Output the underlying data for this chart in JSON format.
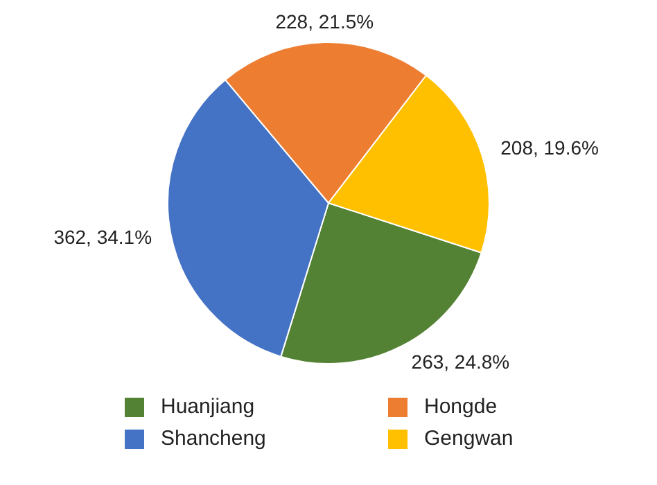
{
  "chart_data": {
    "type": "pie",
    "categories": [
      "Huanjiang",
      "Shancheng",
      "Hongde",
      "Gengwan"
    ],
    "values": [
      263,
      362,
      228,
      208
    ],
    "colors": [
      "#548235",
      "#4472c4",
      "#ed7d31",
      "#ffc000"
    ],
    "value_labels": [
      "263, 24.8%",
      "362, 34.1%",
      "228, 21.5%",
      "208, 19.6%"
    ],
    "legend": "bottom"
  }
}
